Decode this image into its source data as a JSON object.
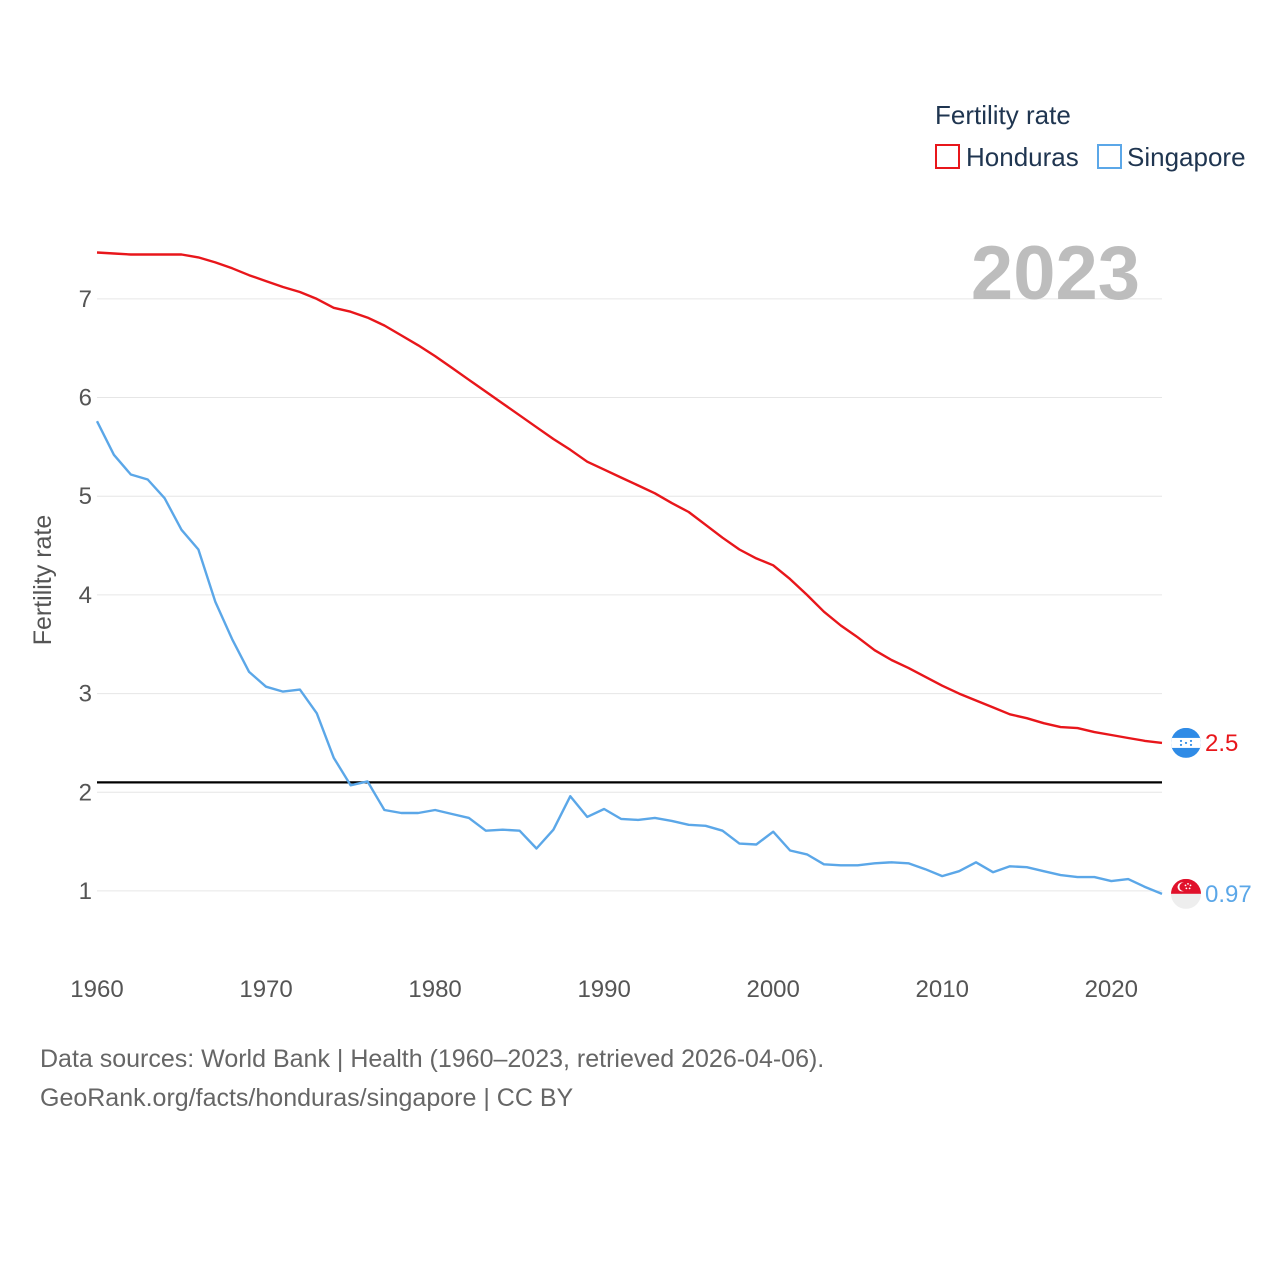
{
  "chart_data": {
    "type": "line",
    "legend": {
      "title": "Fertility rate",
      "position": "top-right"
    },
    "current_year": "2023",
    "ylabel": "Fertility rate",
    "xlabel": "",
    "xlim": [
      1960,
      2023
    ],
    "ylim": [
      0.3,
      7.85
    ],
    "yticks": [
      1,
      2,
      3,
      4,
      5,
      6,
      7
    ],
    "xticks": [
      1960,
      1970,
      1980,
      1990,
      2000,
      2010,
      2020
    ],
    "reference_line": {
      "y": 2.1,
      "color": "#000000"
    },
    "series": [
      {
        "name": "Honduras",
        "color": "#e8161b",
        "end_label": "2.5",
        "x": [
          1960,
          1961,
          1962,
          1963,
          1964,
          1965,
          1966,
          1967,
          1968,
          1969,
          1970,
          1971,
          1972,
          1973,
          1974,
          1975,
          1976,
          1977,
          1978,
          1979,
          1980,
          1981,
          1982,
          1983,
          1984,
          1985,
          1986,
          1987,
          1988,
          1989,
          1990,
          1991,
          1992,
          1993,
          1994,
          1995,
          1996,
          1997,
          1998,
          1999,
          2000,
          2001,
          2002,
          2003,
          2004,
          2005,
          2006,
          2007,
          2008,
          2009,
          2010,
          2011,
          2012,
          2013,
          2014,
          2015,
          2016,
          2017,
          2018,
          2019,
          2020,
          2021,
          2022,
          2023
        ],
        "values": [
          7.47,
          7.46,
          7.45,
          7.45,
          7.45,
          7.45,
          7.42,
          7.37,
          7.31,
          7.24,
          7.18,
          7.12,
          7.07,
          7.0,
          6.91,
          6.87,
          6.81,
          6.73,
          6.63,
          6.53,
          6.42,
          6.3,
          6.18,
          6.06,
          5.94,
          5.82,
          5.7,
          5.58,
          5.47,
          5.35,
          5.27,
          5.19,
          5.11,
          5.03,
          4.93,
          4.84,
          4.71,
          4.58,
          4.46,
          4.37,
          4.3,
          4.16,
          4.0,
          3.83,
          3.69,
          3.57,
          3.44,
          3.34,
          3.26,
          3.17,
          3.08,
          3.0,
          2.93,
          2.86,
          2.79,
          2.75,
          2.7,
          2.66,
          2.65,
          2.61,
          2.58,
          2.55,
          2.52,
          2.5
        ]
      },
      {
        "name": "Singapore",
        "color": "#5ba7e8",
        "end_label": "0.97",
        "x": [
          1960,
          1961,
          1962,
          1963,
          1964,
          1965,
          1966,
          1967,
          1968,
          1969,
          1970,
          1971,
          1972,
          1973,
          1974,
          1975,
          1976,
          1977,
          1978,
          1979,
          1980,
          1981,
          1982,
          1983,
          1984,
          1985,
          1986,
          1987,
          1988,
          1989,
          1990,
          1991,
          1992,
          1993,
          1994,
          1995,
          1996,
          1997,
          1998,
          1999,
          2000,
          2001,
          2002,
          2003,
          2004,
          2005,
          2006,
          2007,
          2008,
          2009,
          2010,
          2011,
          2012,
          2013,
          2014,
          2015,
          2016,
          2017,
          2018,
          2019,
          2020,
          2021,
          2022,
          2023
        ],
        "values": [
          5.76,
          5.42,
          5.22,
          5.17,
          4.98,
          4.66,
          4.46,
          3.93,
          3.55,
          3.22,
          3.07,
          3.02,
          3.04,
          2.8,
          2.35,
          2.07,
          2.11,
          1.82,
          1.79,
          1.79,
          1.82,
          1.78,
          1.74,
          1.61,
          1.62,
          1.61,
          1.43,
          1.62,
          1.96,
          1.75,
          1.83,
          1.73,
          1.72,
          1.74,
          1.71,
          1.67,
          1.66,
          1.61,
          1.48,
          1.47,
          1.6,
          1.41,
          1.37,
          1.27,
          1.26,
          1.26,
          1.28,
          1.29,
          1.28,
          1.22,
          1.15,
          1.2,
          1.29,
          1.19,
          1.25,
          1.24,
          1.2,
          1.16,
          1.14,
          1.14,
          1.1,
          1.12,
          1.04,
          0.97
        ]
      }
    ]
  },
  "footer": {
    "source_line": "Data sources: World Bank | Health (1960–2023, retrieved 2026-04-06).",
    "link_line": "GeoRank.org/facts/honduras/singapore | CC BY"
  }
}
